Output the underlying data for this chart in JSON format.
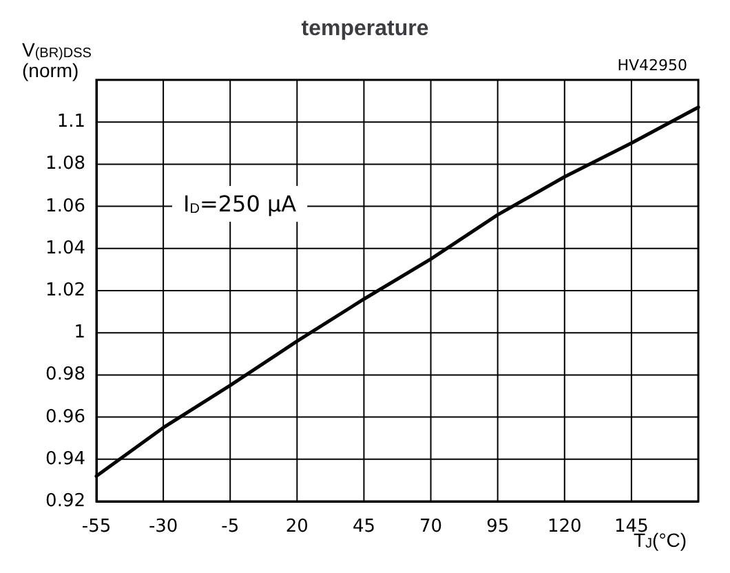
{
  "chart_data": {
    "type": "line",
    "title": "temperature",
    "xlabel": "T$_{J}$(°C)",
    "ylabel": "V$_{(BR)DSS}$\n(norm)",
    "x": [
      -55,
      -30,
      -5,
      20,
      45,
      70,
      95,
      120,
      145,
      170
    ],
    "series": [
      {
        "color": "#000000",
        "values": [
          0.932,
          0.955,
          0.975,
          0.996,
          1.016,
          1.035,
          1.056,
          1.074,
          1.09,
          1.107
        ]
      }
    ],
    "xlim": [
      -55,
      170
    ],
    "xticks": [
      -55,
      -30,
      -5,
      20,
      45,
      70,
      95,
      120,
      145
    ],
    "ylim": [
      0.92,
      1.12
    ],
    "yticks": [
      0.92,
      0.94,
      0.96,
      0.98,
      1,
      1.02,
      1.04,
      1.06,
      1.08,
      1.1
    ],
    "grid": true,
    "marker": "none",
    "line_style": "solid",
    "annotations": [
      "I$_{D}$=250 µA",
      "HV42950"
    ]
  }
}
